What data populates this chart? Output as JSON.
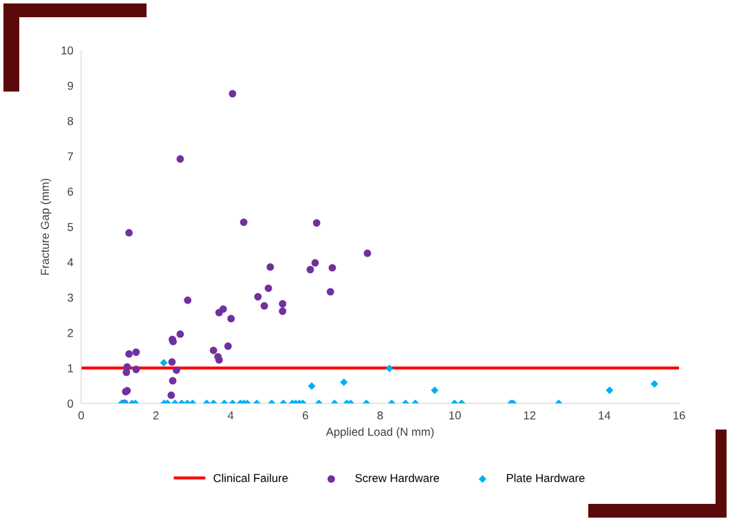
{
  "chart_data": {
    "type": "scatter",
    "xlabel": "Applied Load (N mm)",
    "ylabel": "Fracture Gap (mm)",
    "xlim": [
      0,
      16
    ],
    "ylim": [
      0,
      10
    ],
    "xticks": [
      0,
      2,
      4,
      6,
      8,
      10,
      12,
      14,
      16
    ],
    "yticks": [
      0,
      1,
      2,
      3,
      4,
      5,
      6,
      7,
      8,
      9,
      10
    ],
    "grid": false,
    "legend": "bottom",
    "ref_lines": [
      {
        "axis": "y",
        "value": 1,
        "label": "Clinical Failure",
        "color": "#ff0000",
        "line_style": "solid"
      }
    ],
    "series": [
      {
        "name": "Screw Hardware",
        "color": "#7030a0",
        "marker": "circle",
        "x": [
          1.28,
          4.35,
          6.3,
          5.06,
          6.26,
          6.13,
          5.01,
          2.85,
          4.73,
          4.9,
          5.39,
          5.39,
          3.8,
          3.69,
          4.01,
          2.65,
          2.44,
          2.46,
          3.93,
          3.54,
          3.66,
          3.69,
          1.28,
          1.47,
          1.23,
          1.21,
          1.47,
          2.43,
          2.55,
          2.45,
          2.41,
          1.19,
          1.23,
          1.16,
          4.05,
          2.65,
          6.72,
          6.67,
          7.66
        ],
        "values": [
          4.83,
          5.13,
          5.11,
          3.86,
          3.98,
          3.79,
          3.26,
          2.92,
          3.02,
          2.76,
          2.82,
          2.61,
          2.67,
          2.57,
          2.4,
          1.96,
          1.81,
          1.75,
          1.62,
          1.5,
          1.32,
          1.23,
          1.4,
          1.45,
          1.03,
          0.88,
          0.96,
          1.17,
          0.94,
          0.64,
          0.23,
          0.33,
          0.36,
          0,
          8.77,
          6.92,
          3.84,
          3.16,
          4.25
        ]
      },
      {
        "name": "Plate Hardware",
        "color": "#00b0f0",
        "marker": "diamond",
        "x": [
          2.21,
          6.17,
          7.03,
          8.25,
          9.46,
          14.14,
          15.34,
          1.08,
          1.17,
          1.36,
          1.45,
          2.22,
          2.31,
          2.51,
          2.69,
          2.84,
          2.98,
          3.36,
          3.54,
          3.83,
          4.05,
          4.26,
          4.35,
          4.44,
          4.7,
          5.1,
          5.41,
          5.65,
          5.74,
          5.84,
          5.93,
          6.36,
          6.78,
          7.11,
          7.21,
          7.63,
          8.31,
          8.68,
          8.94,
          9.99,
          10.18,
          11.5,
          11.56,
          12.78
        ],
        "values": [
          1.15,
          0.49,
          0.6,
          0.99,
          0.37,
          0.37,
          0.55,
          0,
          0,
          0,
          0,
          0,
          0,
          0,
          0,
          0,
          0,
          0,
          0,
          0,
          0,
          0,
          0,
          0,
          0,
          0,
          0,
          0,
          0,
          0,
          0,
          0,
          0,
          0,
          0,
          0,
          0,
          0,
          0,
          0,
          0,
          0,
          0,
          0
        ]
      }
    ]
  }
}
